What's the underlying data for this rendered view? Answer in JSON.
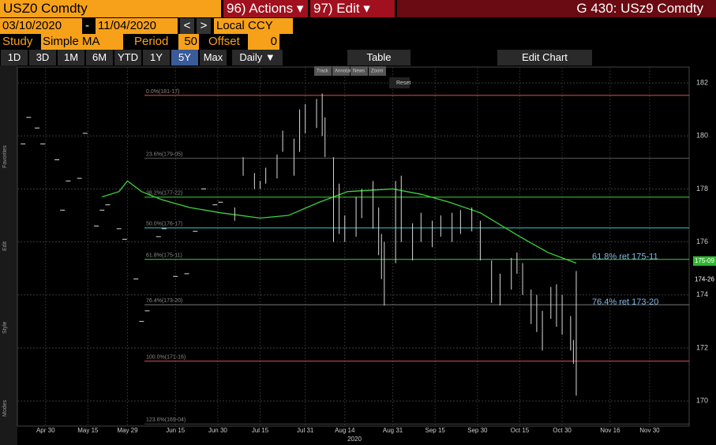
{
  "header": {
    "security": "USZ0 Comdty",
    "actions": "96) Actions ▾",
    "edit": "97) Edit ▾",
    "right_title": "G 430: USz9 Comdty"
  },
  "controls": {
    "start": "03/10/2020",
    "dash": "-",
    "end": "11/04/2020",
    "currency": "Local CCY",
    "study_label": "Study",
    "study": "Simple MA",
    "period_label": "Period",
    "period": 50,
    "offset_label": "Offset",
    "offset": 0
  },
  "ranges": [
    "1D",
    "3D",
    "1M",
    "6M",
    "YTD",
    "1Y",
    "5Y",
    "Max"
  ],
  "frequency": "Daily ▼",
  "table": "Table",
  "edit_chart": "Edit Chart",
  "overlay": {
    "tools": [
      "Track",
      "Annotate",
      "News",
      "Zoom"
    ],
    "reset": "Reset"
  },
  "side_labels": [
    "Favorites",
    "Edit",
    "Style",
    "Modes"
  ],
  "chart_data": {
    "type": "bar-range",
    "x_title": "2020",
    "xlim": [
      "2020-04-20",
      "2020-12-14"
    ],
    "xticks": [
      {
        "value": "2020-04-30",
        "label": "Apr 30"
      },
      {
        "value": "2020-05-15",
        "label": "May 15"
      },
      {
        "value": "2020-05-29",
        "label": "May 29"
      },
      {
        "value": "2020-06-15",
        "label": "Jun 15"
      },
      {
        "value": "2020-06-30",
        "label": "Jun 30"
      },
      {
        "value": "2020-07-15",
        "label": "Jul 15"
      },
      {
        "value": "2020-07-31",
        "label": "Jul 31"
      },
      {
        "value": "2020-08-14",
        "label": "Aug 14"
      },
      {
        "value": "2020-08-31",
        "label": "Aug 31"
      },
      {
        "value": "2020-09-15",
        "label": "Sep 15"
      },
      {
        "value": "2020-09-30",
        "label": "Sep 30"
      },
      {
        "value": "2020-10-15",
        "label": "Oct 15"
      },
      {
        "value": "2020-10-30",
        "label": "Oct 30"
      },
      {
        "value": "2020-11-16",
        "label": "Nov 16"
      },
      {
        "value": "2020-11-30",
        "label": "Nov 30"
      }
    ],
    "ylim": [
      169.05,
      182.6
    ],
    "yticks": [
      170,
      172,
      174,
      176,
      178,
      180,
      182
    ],
    "grid": true,
    "x": [
      "2020-04-22",
      "2020-04-24",
      "2020-04-27",
      "2020-04-29",
      "2020-05-04",
      "2020-05-06",
      "2020-05-08",
      "2020-05-12",
      "2020-05-14",
      "2020-05-18",
      "2020-05-20",
      "2020-05-22",
      "2020-05-26",
      "2020-05-28",
      "2020-06-01",
      "2020-06-03",
      "2020-06-05",
      "2020-06-09",
      "2020-06-11",
      "2020-06-15",
      "2020-06-19",
      "2020-06-22",
      "2020-06-25",
      "2020-06-29",
      "2020-07-01",
      "2020-07-06",
      "2020-07-09",
      "2020-07-13",
      "2020-07-15",
      "2020-07-17",
      "2020-07-21",
      "2020-07-23",
      "2020-07-27",
      "2020-07-29",
      "2020-07-31",
      "2020-08-04",
      "2020-08-06",
      "2020-08-07",
      "2020-08-10",
      "2020-08-12",
      "2020-08-14",
      "2020-08-18",
      "2020-08-20",
      "2020-08-24",
      "2020-08-26",
      "2020-08-27",
      "2020-08-28",
      "2020-09-01",
      "2020-09-03",
      "2020-09-07",
      "2020-09-10",
      "2020-09-14",
      "2020-09-17",
      "2020-09-21",
      "2020-09-24",
      "2020-09-28",
      "2020-10-01",
      "2020-10-05",
      "2020-10-08",
      "2020-10-12",
      "2020-10-14",
      "2020-10-16",
      "2020-10-19",
      "2020-10-21",
      "2020-10-23",
      "2020-10-26",
      "2020-10-28",
      "2020-10-30",
      "2020-11-02",
      "2020-11-03",
      "2020-11-04"
    ],
    "high": [
      179.7,
      180.7,
      180.3,
      179.7,
      179.1,
      177.2,
      178.3,
      178.4,
      180.1,
      176.6,
      177.2,
      177.4,
      176.5,
      176.1,
      174.6,
      173.0,
      173.4,
      176.2,
      176.5,
      174.7,
      174.8,
      176.4,
      178.0,
      177.4,
      177.5,
      177.3,
      179.2,
      178.6,
      178.3,
      178.8,
      179.3,
      180.2,
      179.9,
      181.0,
      181.2,
      181.4,
      181.6,
      180.7,
      179.2,
      178.2,
      177.0,
      177.7,
      178.0,
      178.3,
      177.3,
      176.3,
      176.0,
      178.3,
      178.5,
      176.7,
      177.1,
      176.8,
      177.0,
      177.1,
      177.2,
      177.3,
      176.8,
      175.3,
      174.8,
      175.4,
      175.6,
      175.2,
      174.2,
      174.0,
      173.4,
      174.3,
      174.4,
      174.0,
      173.2,
      172.3,
      174.9
    ],
    "low": [
      179.7,
      180.7,
      180.3,
      179.7,
      179.1,
      177.2,
      178.3,
      178.4,
      180.1,
      176.6,
      177.2,
      177.4,
      176.5,
      176.1,
      174.6,
      173.0,
      173.4,
      176.2,
      176.5,
      174.7,
      174.8,
      176.4,
      178.0,
      177.4,
      177.5,
      176.8,
      178.5,
      178.0,
      178.0,
      178.2,
      178.4,
      179.4,
      178.5,
      179.4,
      180.1,
      180.3,
      180.0,
      179.2,
      176.0,
      176.3,
      176.0,
      176.2,
      176.9,
      176.5,
      175.5,
      174.6,
      173.6,
      175.2,
      176.0,
      175.3,
      176.0,
      175.8,
      176.2,
      176.0,
      176.3,
      176.4,
      175.3,
      173.7,
      173.6,
      174.2,
      174.8,
      174.0,
      172.9,
      172.6,
      171.9,
      173.1,
      172.8,
      172.5,
      171.9,
      171.4,
      170.2
    ],
    "bar_color": "#d9d9d9",
    "ma": {
      "color": "#3cd33c",
      "x": [
        "2020-05-20",
        "2020-05-26",
        "2020-05-29",
        "2020-06-03",
        "2020-06-10",
        "2020-06-20",
        "2020-07-01",
        "2020-07-15",
        "2020-07-25",
        "2020-08-05",
        "2020-08-15",
        "2020-08-31",
        "2020-09-10",
        "2020-09-20",
        "2020-10-01",
        "2020-10-15",
        "2020-10-25",
        "2020-11-04"
      ],
      "values": [
        177.7,
        177.9,
        178.3,
        177.9,
        177.6,
        177.3,
        177.1,
        176.9,
        177.0,
        177.5,
        177.9,
        178.0,
        177.8,
        177.5,
        177.1,
        176.2,
        175.6,
        175.2
      ]
    },
    "levels": [
      {
        "label": "0.0%(181-17)",
        "value": 181.53,
        "color": "#e05050"
      },
      {
        "label": "23.6%(179-05)",
        "value": 179.16,
        "color": "#555555"
      },
      {
        "label": "38.2%(177-22)",
        "value": 177.69,
        "color": "#3cd33c"
      },
      {
        "label": "50.0%(176-17)",
        "value": 176.53,
        "color": "#33cccc"
      },
      {
        "label": "61.8%(175-11)",
        "value": 175.34,
        "color": "#3cd33c"
      },
      {
        "label": "76.4%(173-20)",
        "value": 173.63,
        "color": "#777777"
      },
      {
        "label": "100.0%(171-16)",
        "value": 171.5,
        "color": "#e05050"
      },
      {
        "label": "123.6%(169-04)",
        "value": 169.13,
        "color": "#444444"
      }
    ],
    "annotations": [
      {
        "label": "61.8% ret 175-11",
        "value": 175.34
      },
      {
        "label": "76.4% ret 173-20",
        "value": 173.63
      }
    ],
    "last_labels": [
      {
        "label": "175-09",
        "value": 175.28,
        "color": "#2fb82f"
      },
      {
        "label": "174-26",
        "value": 174.81,
        "color": "#000000"
      }
    ]
  }
}
